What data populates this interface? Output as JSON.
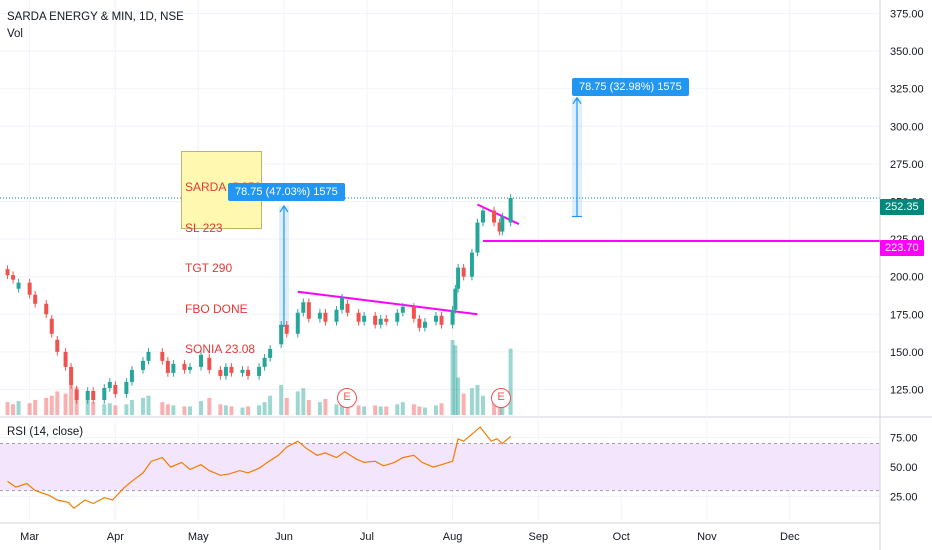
{
  "header": {
    "title": "SARDA ENERGY & MIN, 1D, NSE",
    "vol_label": "Vol",
    "rsi_label": "RSI (14, close)"
  },
  "colors": {
    "up": "#26a69a",
    "down": "#ef5350",
    "magenta": "#ff00ff",
    "measure": "#2196f3",
    "rsi_line": "#f57c00",
    "rsi_band": "#f3e5fb",
    "last_price": "#00897b"
  },
  "price_axis": {
    "ticks": [
      "375.00",
      "350.00",
      "325.00",
      "300.00",
      "275.00",
      "250.00",
      "225.00",
      "200.00",
      "175.00",
      "150.00",
      "125.00"
    ],
    "ylim": [
      108,
      384
    ]
  },
  "rsi_axis": {
    "ticks": [
      "75.00",
      "50.00",
      "25.00"
    ],
    "ylim": [
      5,
      90
    ],
    "bands": [
      30,
      70
    ]
  },
  "time_axis": {
    "labels": [
      "Mar",
      "Apr",
      "May",
      "Jun",
      "Jul",
      "Aug",
      "Sep",
      "Oct",
      "Nov",
      "Dec"
    ]
  },
  "price_tags": [
    {
      "label": "252.35",
      "color": "#00897b"
    },
    {
      "label": "223.70",
      "color": "#ff00ff"
    }
  ],
  "annotation": {
    "lines": [
      "SARDA @252",
      "SL 223",
      "TGT 290",
      "FBO DONE",
      "SONIA 23.08"
    ]
  },
  "measures": [
    {
      "label": "78.75 (47.03%) 1575"
    },
    {
      "label": "78.75 (32.98%) 1575"
    }
  ],
  "earnings": [
    {
      "label": "E"
    },
    {
      "label": "E"
    }
  ],
  "chart_data": {
    "type": "line",
    "title": "SARDA ENERGY & MIN, 1D, NSE",
    "series": [
      {
        "name": "SARDA ENERGY & MIN",
        "type": "candlestick",
        "points": [
          {
            "d": "2022-02-21",
            "o": 205,
            "c": 201
          },
          {
            "d": "2022-02-23",
            "o": 201,
            "c": 198
          },
          {
            "d": "2022-02-25",
            "o": 192,
            "c": 196
          },
          {
            "d": "2022-03-01",
            "o": 196,
            "c": 188
          },
          {
            "d": "2022-03-03",
            "o": 188,
            "c": 182
          },
          {
            "d": "2022-03-07",
            "o": 182,
            "c": 175
          },
          {
            "d": "2022-03-09",
            "o": 172,
            "c": 162
          },
          {
            "d": "2022-03-11",
            "o": 158,
            "c": 150
          },
          {
            "d": "2022-03-14",
            "o": 150,
            "c": 140
          },
          {
            "d": "2022-03-16",
            "o": 140,
            "c": 128
          },
          {
            "d": "2022-03-18",
            "o": 125,
            "c": 118
          },
          {
            "d": "2022-03-22",
            "o": 118,
            "c": 124
          },
          {
            "d": "2022-03-24",
            "o": 124,
            "c": 118
          },
          {
            "d": "2022-03-28",
            "o": 118,
            "c": 126
          },
          {
            "d": "2022-03-30",
            "o": 126,
            "c": 130
          },
          {
            "d": "2022-04-01",
            "o": 128,
            "c": 122
          },
          {
            "d": "2022-04-05",
            "o": 122,
            "c": 130
          },
          {
            "d": "2022-04-07",
            "o": 130,
            "c": 138
          },
          {
            "d": "2022-04-11",
            "o": 138,
            "c": 144
          },
          {
            "d": "2022-04-13",
            "o": 144,
            "c": 150
          },
          {
            "d": "2022-04-18",
            "o": 150,
            "c": 144
          },
          {
            "d": "2022-04-20",
            "o": 144,
            "c": 136
          },
          {
            "d": "2022-04-22",
            "o": 136,
            "c": 142
          },
          {
            "d": "2022-04-26",
            "o": 142,
            "c": 138
          },
          {
            "d": "2022-04-28",
            "o": 138,
            "c": 140
          },
          {
            "d": "2022-05-02",
            "o": 140,
            "c": 148
          },
          {
            "d": "2022-05-05",
            "o": 146,
            "c": 138
          },
          {
            "d": "2022-05-09",
            "o": 138,
            "c": 134
          },
          {
            "d": "2022-05-11",
            "o": 134,
            "c": 140
          },
          {
            "d": "2022-05-13",
            "o": 140,
            "c": 136
          },
          {
            "d": "2022-05-17",
            "o": 136,
            "c": 138
          },
          {
            "d": "2022-05-19",
            "o": 138,
            "c": 134
          },
          {
            "d": "2022-05-23",
            "o": 134,
            "c": 140
          },
          {
            "d": "2022-05-25",
            "o": 140,
            "c": 146
          },
          {
            "d": "2022-05-27",
            "o": 146,
            "c": 152
          },
          {
            "d": "2022-05-31",
            "o": 155,
            "c": 168
          },
          {
            "d": "2022-06-02",
            "o": 168,
            "c": 162
          },
          {
            "d": "2022-06-06",
            "o": 162,
            "c": 176
          },
          {
            "d": "2022-06-08",
            "o": 176,
            "c": 183
          },
          {
            "d": "2022-06-10",
            "o": 183,
            "c": 172
          },
          {
            "d": "2022-06-14",
            "o": 172,
            "c": 176
          },
          {
            "d": "2022-06-16",
            "o": 176,
            "c": 170
          },
          {
            "d": "2022-06-20",
            "o": 170,
            "c": 178
          },
          {
            "d": "2022-06-22",
            "o": 178,
            "c": 186
          },
          {
            "d": "2022-06-24",
            "o": 182,
            "c": 176
          },
          {
            "d": "2022-06-28",
            "o": 176,
            "c": 170
          },
          {
            "d": "2022-06-30",
            "o": 170,
            "c": 174
          },
          {
            "d": "2022-07-04",
            "o": 174,
            "c": 168
          },
          {
            "d": "2022-07-06",
            "o": 168,
            "c": 172
          },
          {
            "d": "2022-07-08",
            "o": 172,
            "c": 170
          },
          {
            "d": "2022-07-12",
            "o": 170,
            "c": 176
          },
          {
            "d": "2022-07-14",
            "o": 176,
            "c": 180
          },
          {
            "d": "2022-07-18",
            "o": 180,
            "c": 172
          },
          {
            "d": "2022-07-20",
            "o": 172,
            "c": 166
          },
          {
            "d": "2022-07-22",
            "o": 166,
            "c": 170
          },
          {
            "d": "2022-07-26",
            "o": 170,
            "c": 174
          },
          {
            "d": "2022-07-28",
            "o": 174,
            "c": 168
          },
          {
            "d": "2022-08-01",
            "o": 168,
            "c": 178
          },
          {
            "d": "2022-08-02",
            "o": 178,
            "c": 192
          },
          {
            "d": "2022-08-03",
            "o": 192,
            "c": 206
          },
          {
            "d": "2022-08-05",
            "o": 206,
            "c": 200
          },
          {
            "d": "2022-08-08",
            "o": 200,
            "c": 216
          },
          {
            "d": "2022-08-10",
            "o": 216,
            "c": 236
          },
          {
            "d": "2022-08-12",
            "o": 236,
            "c": 244
          },
          {
            "d": "2022-08-16",
            "o": 244,
            "c": 236
          },
          {
            "d": "2022-08-18",
            "o": 236,
            "c": 230
          },
          {
            "d": "2022-08-19",
            "o": 230,
            "c": 240
          },
          {
            "d": "2022-08-22",
            "o": 236,
            "c": 252.35
          }
        ]
      },
      {
        "name": "Vol",
        "type": "volume",
        "points": [
          {
            "d": "2022-02-21",
            "v": 1.2
          },
          {
            "d": "2022-02-23",
            "v": 1.0
          },
          {
            "d": "2022-02-25",
            "v": 1.3
          },
          {
            "d": "2022-03-01",
            "v": 1.1
          },
          {
            "d": "2022-03-03",
            "v": 1.4
          },
          {
            "d": "2022-03-07",
            "v": 1.6
          },
          {
            "d": "2022-03-09",
            "v": 1.8
          },
          {
            "d": "2022-03-11",
            "v": 2.2
          },
          {
            "d": "2022-03-14",
            "v": 2.0
          },
          {
            "d": "2022-03-16",
            "v": 3.0
          },
          {
            "d": "2022-03-18",
            "v": 2.6
          },
          {
            "d": "2022-03-22",
            "v": 1.5
          },
          {
            "d": "2022-03-24",
            "v": 1.2
          },
          {
            "d": "2022-03-28",
            "v": 1.0
          },
          {
            "d": "2022-03-30",
            "v": 1.1
          },
          {
            "d": "2022-04-01",
            "v": 0.9
          },
          {
            "d": "2022-04-05",
            "v": 1.0
          },
          {
            "d": "2022-04-07",
            "v": 1.4
          },
          {
            "d": "2022-04-11",
            "v": 1.6
          },
          {
            "d": "2022-04-13",
            "v": 1.8
          },
          {
            "d": "2022-04-18",
            "v": 1.2
          },
          {
            "d": "2022-04-20",
            "v": 1.0
          },
          {
            "d": "2022-04-22",
            "v": 0.9
          },
          {
            "d": "2022-04-26",
            "v": 0.8
          },
          {
            "d": "2022-04-28",
            "v": 0.8
          },
          {
            "d": "2022-05-02",
            "v": 1.3
          },
          {
            "d": "2022-05-05",
            "v": 1.6
          },
          {
            "d": "2022-05-09",
            "v": 1.0
          },
          {
            "d": "2022-05-11",
            "v": 0.9
          },
          {
            "d": "2022-05-13",
            "v": 0.8
          },
          {
            "d": "2022-05-17",
            "v": 0.7
          },
          {
            "d": "2022-05-19",
            "v": 0.8
          },
          {
            "d": "2022-05-23",
            "v": 0.9
          },
          {
            "d": "2022-05-25",
            "v": 1.2
          },
          {
            "d": "2022-05-27",
            "v": 1.8
          },
          {
            "d": "2022-05-31",
            "v": 2.8
          },
          {
            "d": "2022-06-02",
            "v": 1.6
          },
          {
            "d": "2022-06-06",
            "v": 2.2
          },
          {
            "d": "2022-06-08",
            "v": 2.5
          },
          {
            "d": "2022-06-10",
            "v": 1.4
          },
          {
            "d": "2022-06-14",
            "v": 1.2
          },
          {
            "d": "2022-06-16",
            "v": 1.5
          },
          {
            "d": "2022-06-20",
            "v": 1.0
          },
          {
            "d": "2022-06-22",
            "v": 1.3
          },
          {
            "d": "2022-06-24",
            "v": 1.1
          },
          {
            "d": "2022-06-28",
            "v": 0.9
          },
          {
            "d": "2022-06-30",
            "v": 0.8
          },
          {
            "d": "2022-07-04",
            "v": 0.9
          },
          {
            "d": "2022-07-06",
            "v": 0.8
          },
          {
            "d": "2022-07-08",
            "v": 0.8
          },
          {
            "d": "2022-07-12",
            "v": 1.0
          },
          {
            "d": "2022-07-14",
            "v": 1.2
          },
          {
            "d": "2022-07-18",
            "v": 1.0
          },
          {
            "d": "2022-07-20",
            "v": 0.8
          },
          {
            "d": "2022-07-22",
            "v": 0.7
          },
          {
            "d": "2022-07-26",
            "v": 0.9
          },
          {
            "d": "2022-07-28",
            "v": 1.1
          },
          {
            "d": "2022-08-01",
            "v": 7.0
          },
          {
            "d": "2022-08-02",
            "v": 6.5
          },
          {
            "d": "2022-08-03",
            "v": 3.5
          },
          {
            "d": "2022-08-05",
            "v": 2.0
          },
          {
            "d": "2022-08-08",
            "v": 2.5
          },
          {
            "d": "2022-08-10",
            "v": 2.8
          },
          {
            "d": "2022-08-12",
            "v": 1.8
          },
          {
            "d": "2022-08-16",
            "v": 1.6
          },
          {
            "d": "2022-08-18",
            "v": 1.2
          },
          {
            "d": "2022-08-19",
            "v": 1.5
          },
          {
            "d": "2022-08-22",
            "v": 6.2
          }
        ]
      },
      {
        "name": "RSI (14, close)",
        "type": "line",
        "points": [
          {
            "d": "2022-02-21",
            "v": 38
          },
          {
            "d": "2022-02-24",
            "v": 33
          },
          {
            "d": "2022-02-28",
            "v": 36
          },
          {
            "d": "2022-03-03",
            "v": 30
          },
          {
            "d": "2022-03-08",
            "v": 26
          },
          {
            "d": "2022-03-11",
            "v": 22
          },
          {
            "d": "2022-03-15",
            "v": 20
          },
          {
            "d": "2022-03-17",
            "v": 15
          },
          {
            "d": "2022-03-21",
            "v": 22
          },
          {
            "d": "2022-03-24",
            "v": 19
          },
          {
            "d": "2022-03-28",
            "v": 24
          },
          {
            "d": "2022-03-31",
            "v": 22
          },
          {
            "d": "2022-04-04",
            "v": 32
          },
          {
            "d": "2022-04-07",
            "v": 38
          },
          {
            "d": "2022-04-11",
            "v": 45
          },
          {
            "d": "2022-04-14",
            "v": 55
          },
          {
            "d": "2022-04-18",
            "v": 58
          },
          {
            "d": "2022-04-21",
            "v": 50
          },
          {
            "d": "2022-04-25",
            "v": 54
          },
          {
            "d": "2022-04-28",
            "v": 48
          },
          {
            "d": "2022-05-02",
            "v": 52
          },
          {
            "d": "2022-05-05",
            "v": 47
          },
          {
            "d": "2022-05-09",
            "v": 43
          },
          {
            "d": "2022-05-12",
            "v": 44
          },
          {
            "d": "2022-05-16",
            "v": 47
          },
          {
            "d": "2022-05-19",
            "v": 45
          },
          {
            "d": "2022-05-23",
            "v": 49
          },
          {
            "d": "2022-05-26",
            "v": 54
          },
          {
            "d": "2022-05-30",
            "v": 60
          },
          {
            "d": "2022-06-02",
            "v": 67
          },
          {
            "d": "2022-06-06",
            "v": 72
          },
          {
            "d": "2022-06-09",
            "v": 66
          },
          {
            "d": "2022-06-13",
            "v": 60
          },
          {
            "d": "2022-06-16",
            "v": 62
          },
          {
            "d": "2022-06-20",
            "v": 58
          },
          {
            "d": "2022-06-23",
            "v": 63
          },
          {
            "d": "2022-06-27",
            "v": 57
          },
          {
            "d": "2022-06-30",
            "v": 54
          },
          {
            "d": "2022-07-04",
            "v": 55
          },
          {
            "d": "2022-07-07",
            "v": 51
          },
          {
            "d": "2022-07-11",
            "v": 54
          },
          {
            "d": "2022-07-14",
            "v": 58
          },
          {
            "d": "2022-07-18",
            "v": 60
          },
          {
            "d": "2022-07-21",
            "v": 54
          },
          {
            "d": "2022-07-25",
            "v": 50
          },
          {
            "d": "2022-07-28",
            "v": 52
          },
          {
            "d": "2022-08-01",
            "v": 55
          },
          {
            "d": "2022-08-03",
            "v": 74
          },
          {
            "d": "2022-08-05",
            "v": 72
          },
          {
            "d": "2022-08-09",
            "v": 80
          },
          {
            "d": "2022-08-11",
            "v": 84
          },
          {
            "d": "2022-08-15",
            "v": 72
          },
          {
            "d": "2022-08-17",
            "v": 74
          },
          {
            "d": "2022-08-19",
            "v": 70
          },
          {
            "d": "2022-08-22",
            "v": 76
          }
        ]
      }
    ],
    "annotations": [
      {
        "type": "horizontal_line",
        "y": 223.7,
        "color": "#ff00ff"
      },
      {
        "type": "horizontal_line_dotted",
        "y": 252.35,
        "color": "#00897b"
      },
      {
        "type": "trendline",
        "from": {
          "d": "2022-06-06",
          "y": 190
        },
        "to": {
          "d": "2022-08-10",
          "y": 175
        },
        "color": "#ff00ff"
      },
      {
        "type": "trendline",
        "from": {
          "d": "2022-08-10",
          "y": 248
        },
        "to": {
          "d": "2022-08-25",
          "y": 235
        },
        "color": "#ff00ff"
      },
      {
        "type": "measure",
        "from": {
          "d": "2022-06-01",
          "y": 167
        },
        "to": {
          "d": "2022-06-01",
          "y": 247
        }
      },
      {
        "type": "measure",
        "from": {
          "d": "2022-09-15",
          "y": 240
        },
        "to": {
          "d": "2022-09-15",
          "y": 319
        }
      }
    ],
    "xlim": [
      "2022-02-19",
      "2022-12-30"
    ],
    "ylim": [
      108,
      384
    ],
    "legend": "top-left",
    "grid": true
  }
}
